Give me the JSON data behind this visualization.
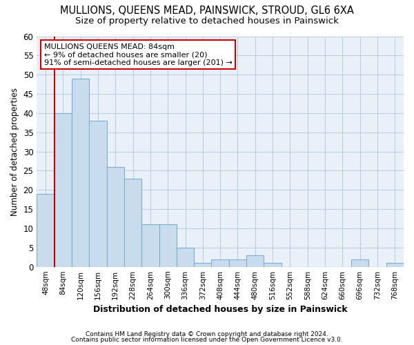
{
  "title": "MULLIONS, QUEENS MEAD, PAINSWICK, STROUD, GL6 6XA",
  "subtitle": "Size of property relative to detached houses in Painswick",
  "xlabel": "Distribution of detached houses by size in Painswick",
  "ylabel": "Number of detached properties",
  "bar_color": "#c9dcee",
  "bar_edge_color": "#7aafd4",
  "bar_categories": [
    "48sqm",
    "84sqm",
    "120sqm",
    "156sqm",
    "192sqm",
    "228sqm",
    "264sqm",
    "300sqm",
    "336sqm",
    "372sqm",
    "408sqm",
    "444sqm",
    "480sqm",
    "516sqm",
    "552sqm",
    "588sqm",
    "624sqm",
    "660sqm",
    "696sqm",
    "732sqm",
    "768sqm"
  ],
  "bar_values": [
    19,
    40,
    49,
    38,
    26,
    23,
    11,
    11,
    5,
    1,
    2,
    2,
    3,
    1,
    0,
    0,
    0,
    0,
    2,
    0,
    1
  ],
  "ylim": [
    0,
    60
  ],
  "yticks": [
    0,
    5,
    10,
    15,
    20,
    25,
    30,
    35,
    40,
    45,
    50,
    55,
    60
  ],
  "marker_bar_index": 1,
  "marker_label": "MULLIONS QUEENS MEAD: 84sqm",
  "marker_line1": "← 9% of detached houses are smaller (20)",
  "marker_line2": "91% of semi-detached houses are larger (201) →",
  "annotation_box_color": "#ffffff",
  "annotation_border_color": "#cc0000",
  "vline_color": "#cc0000",
  "footer_line1": "Contains HM Land Registry data © Crown copyright and database right 2024.",
  "footer_line2": "Contains public sector information licensed under the Open Government Licence v3.0.",
  "bg_color": "#ffffff",
  "plot_bg_color": "#eaf0f8",
  "grid_color": "#b8cfe0",
  "title_fontsize": 10.5,
  "subtitle_fontsize": 9.5,
  "bar_width": 1.0
}
